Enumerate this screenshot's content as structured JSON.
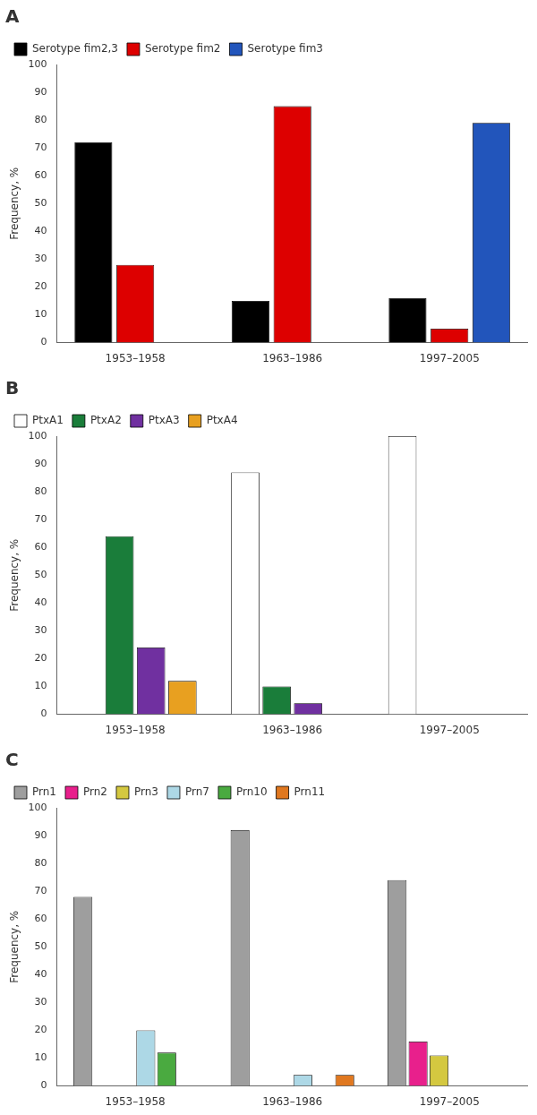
{
  "chart_data": [
    {
      "type": "bar",
      "title": "A",
      "categories": [
        "1953–1958",
        "1963–1986",
        "1997–2005"
      ],
      "series": [
        {
          "name": "Serotype fim2,3",
          "color": "#000000",
          "values": [
            72,
            15,
            16
          ]
        },
        {
          "name": "Serotype fim2",
          "color": "#dd0000",
          "values": [
            28,
            85,
            5
          ]
        },
        {
          "name": "Serotype fim3",
          "color": "#2255bb",
          "values": [
            0,
            0,
            79
          ]
        }
      ],
      "ylabel": "Frequency, %",
      "ylim": [
        0,
        100
      ],
      "yticks": [
        0,
        10,
        20,
        30,
        40,
        50,
        60,
        70,
        80,
        90,
        100
      ],
      "grid": false,
      "legend": "upper left"
    },
    {
      "type": "bar",
      "title": "B",
      "categories": [
        "1953–1958",
        "1963–1986",
        "1997–2005"
      ],
      "series": [
        {
          "name": "PtxA1",
          "color": "#ffffff",
          "values": [
            0,
            87,
            100
          ]
        },
        {
          "name": "PtxA2",
          "color": "#1a7d3a",
          "values": [
            64,
            10,
            0
          ]
        },
        {
          "name": "PtxA3",
          "color": "#7030a0",
          "values": [
            24,
            4,
            0
          ]
        },
        {
          "name": "PtxA4",
          "color": "#e8a020",
          "values": [
            12,
            0,
            0
          ]
        }
      ],
      "ylabel": "Frequency, %",
      "ylim": [
        0,
        100
      ],
      "yticks": [
        0,
        10,
        20,
        30,
        40,
        50,
        60,
        70,
        80,
        90,
        100
      ],
      "grid": false,
      "legend": "upper left"
    },
    {
      "type": "bar",
      "title": "C",
      "categories": [
        "1953–1958",
        "1963–1986",
        "1997–2005"
      ],
      "series": [
        {
          "name": "Prn1",
          "color": "#9e9e9e",
          "values": [
            68,
            92,
            74
          ]
        },
        {
          "name": "Prn2",
          "color": "#e8208c",
          "values": [
            0,
            0,
            16
          ]
        },
        {
          "name": "Prn3",
          "color": "#d4c840",
          "values": [
            0,
            0,
            11
          ]
        },
        {
          "name": "Prn7",
          "color": "#add8e6",
          "values": [
            20,
            4,
            0
          ]
        },
        {
          "name": "Prn10",
          "color": "#4aaa40",
          "values": [
            12,
            0,
            0
          ]
        },
        {
          "name": "Prn11",
          "color": "#e07820",
          "values": [
            0,
            4,
            0
          ]
        }
      ],
      "ylabel": "Frequency, %",
      "ylim": [
        0,
        100
      ],
      "yticks": [
        0,
        10,
        20,
        30,
        40,
        50,
        60,
        70,
        80,
        90,
        100
      ],
      "grid": false,
      "legend": "upper left"
    }
  ]
}
